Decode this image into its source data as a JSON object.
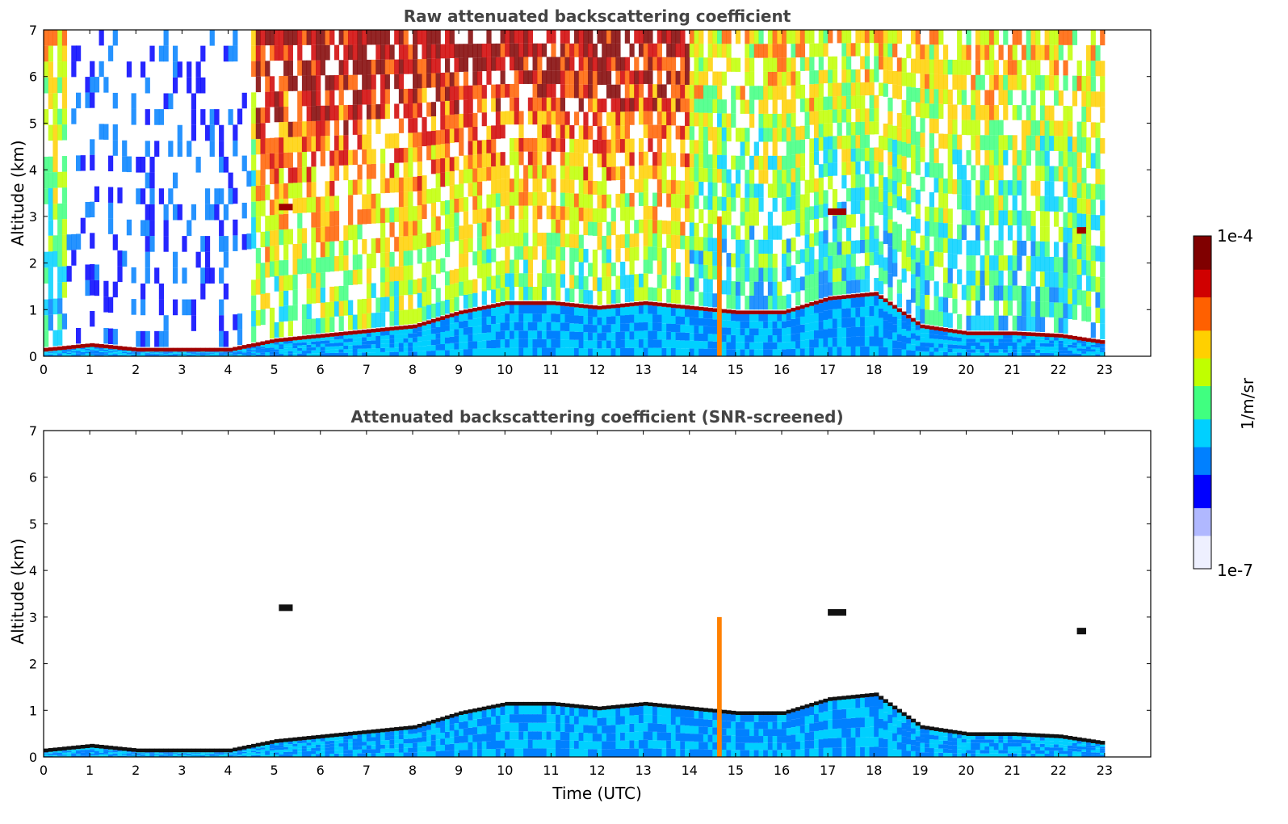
{
  "chart_data": [
    {
      "type": "heatmap",
      "title": "Raw attenuated backscattering coefficient",
      "ylabel": "Altitude (km)",
      "xlabel": "",
      "xlim": [
        0,
        24
      ],
      "ylim": [
        0,
        7
      ],
      "x_ticks": [
        "0",
        "1",
        "2",
        "3",
        "4",
        "5",
        "6",
        "7",
        "8",
        "9",
        "10",
        "11",
        "12",
        "13",
        "14",
        "15",
        "16",
        "17",
        "18",
        "19",
        "20",
        "21",
        "22",
        "23"
      ],
      "y_ticks": [
        "0",
        "1",
        "2",
        "3",
        "4",
        "5",
        "6",
        "7"
      ],
      "data_end_hour": 23,
      "boundary_layer_top_km": [
        [
          0,
          0.1
        ],
        [
          1,
          0.2
        ],
        [
          2,
          0.1
        ],
        [
          3,
          0.1
        ],
        [
          4,
          0.1
        ],
        [
          5,
          0.3
        ],
        [
          6,
          0.4
        ],
        [
          7,
          0.5
        ],
        [
          8,
          0.6
        ],
        [
          9,
          0.9
        ],
        [
          10,
          1.1
        ],
        [
          11,
          1.1
        ],
        [
          12,
          1.0
        ],
        [
          13,
          1.1
        ],
        [
          14,
          1.0
        ],
        [
          15,
          0.9
        ],
        [
          16,
          0.9
        ],
        [
          17,
          1.2
        ],
        [
          18,
          1.3
        ],
        [
          19,
          0.6
        ],
        [
          20,
          0.45
        ],
        [
          21,
          0.45
        ],
        [
          22,
          0.4
        ],
        [
          23,
          0.25
        ]
      ],
      "elevated_layers": [
        {
          "x": [
            5.1,
            5.4
          ],
          "altitude_km": 3.2
        },
        {
          "x": [
            17.0,
            17.4
          ],
          "altitude_km": 3.1
        },
        {
          "x": [
            22.4,
            22.6
          ],
          "altitude_km": 2.7
        },
        {
          "x": [
            14.6,
            14.7
          ],
          "altitude_km_range": [
            0,
            3.0
          ]
        }
      ],
      "grid": false
    },
    {
      "type": "heatmap",
      "title": "Attenuated backscattering coefficient (SNR-screened)",
      "ylabel": "Altitude (km)",
      "xlabel": "Time (UTC)",
      "xlim": [
        0,
        24
      ],
      "ylim": [
        0,
        7
      ],
      "x_ticks": [
        "0",
        "1",
        "2",
        "3",
        "4",
        "5",
        "6",
        "7",
        "8",
        "9",
        "10",
        "11",
        "12",
        "13",
        "14",
        "15",
        "16",
        "17",
        "18",
        "19",
        "20",
        "21",
        "22",
        "23"
      ],
      "y_ticks": [
        "0",
        "1",
        "2",
        "3",
        "4",
        "5",
        "6",
        "7"
      ],
      "data_end_hour": 23,
      "grid": false
    }
  ],
  "colorbar": {
    "label": "1/m/sr",
    "max_label": "1e-4",
    "min_label": "1e-7",
    "scale": "log",
    "colormap": "jet",
    "colors": [
      "#eef0ff",
      "#b0b8ff",
      "#0000ff",
      "#0080ff",
      "#00d0ff",
      "#40ff80",
      "#c0ff00",
      "#ffd000",
      "#ff6000",
      "#d00000",
      "#800000"
    ]
  }
}
